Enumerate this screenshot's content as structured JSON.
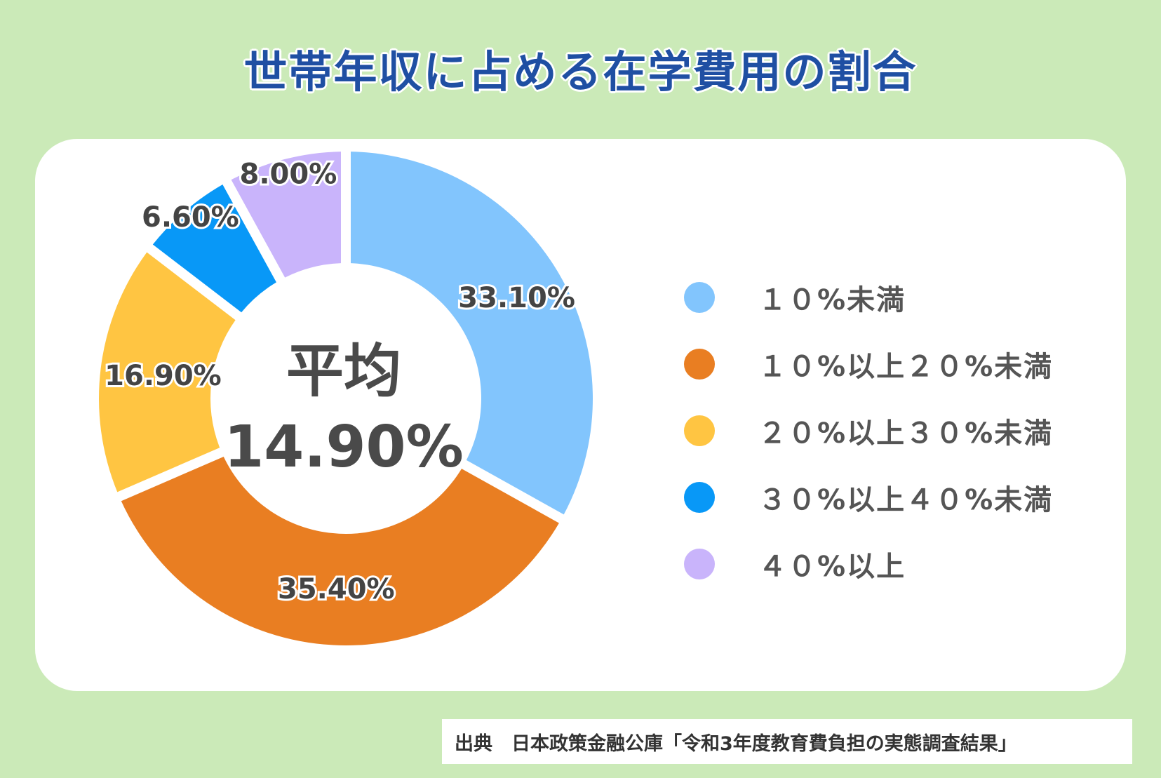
{
  "title": "世帯年収に占める在学費用の割合",
  "center": {
    "label": "平均",
    "value": "14.90%"
  },
  "chart_data": {
    "type": "pie",
    "categories": [
      "１０%未満",
      "１０%以上２０%未満",
      "２０%以上３０%未満",
      "３０%以上４０%未満",
      "４０%以上"
    ],
    "values": [
      33.1,
      35.4,
      16.9,
      6.6,
      8.0
    ],
    "labels": [
      "33.10%",
      "35.40%",
      "16.90%",
      "6.60%",
      "8.00%"
    ],
    "colors": [
      "#82c5fd",
      "#e97e22",
      "#ffc542",
      "#0898f7",
      "#c9b4fb"
    ],
    "legend_position": "right",
    "donut": true
  },
  "source": "出典　日本政策金融公庫「令和3年度教育費負担の実態調査結果」"
}
